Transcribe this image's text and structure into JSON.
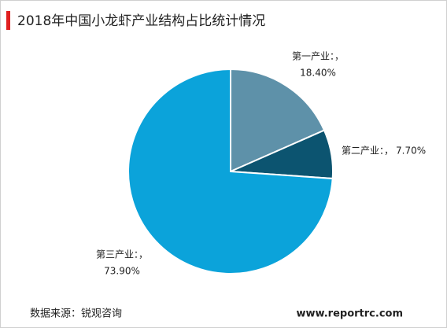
{
  "chart_data": {
    "type": "pie",
    "title": "2018年中国小龙虾产业结构占比统计情况",
    "categories": [
      "第一产业：，",
      "第二产业：，",
      "第三产业：，"
    ],
    "values": [
      18.4,
      7.7,
      73.9
    ],
    "value_labels": [
      "18.40%",
      "7.70%",
      "73.90%"
    ],
    "colors": [
      "#5e91a9",
      "#0c5470",
      "#0ba3da"
    ],
    "source": "数据来源：锐观咨询",
    "website": "www.reportrc.com"
  }
}
